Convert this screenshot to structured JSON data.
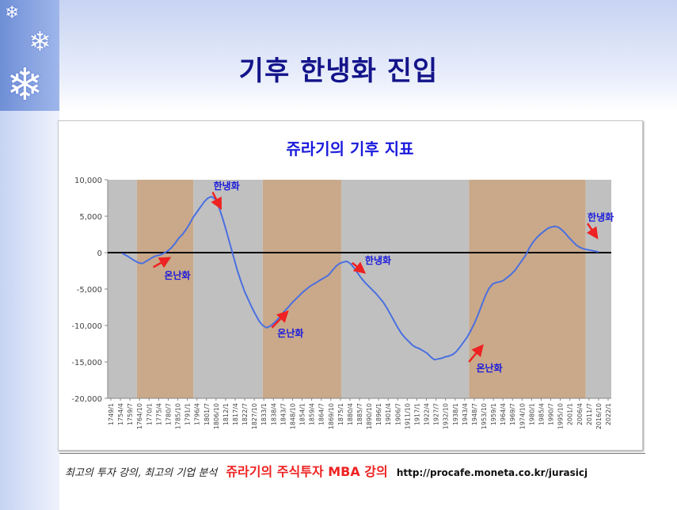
{
  "slide": {
    "title": "기후 한냉화 진입",
    "footer_italic": "최고의 투자 강의, 최고의 기업 분석",
    "footer_brand": "쥬라기의 주식투자 MBA 강의",
    "footer_url": "http://procafe.moneta.co.kr/jurasicj"
  },
  "colors": {
    "title": "#14148a",
    "line": "#4a6fe0",
    "warm_band": "#c9a98a",
    "cool_band": "#c0c0c0",
    "annotation_text": "#1a1adc",
    "arrow": "#ee2222",
    "footer_brand": "#ee2222"
  },
  "chart_data": {
    "type": "line",
    "title": "쥬라기의 기후 지표",
    "ylim": [
      -20000,
      10000
    ],
    "y_ticks": [
      10000,
      5000,
      0,
      -5000,
      -10000,
      -15000,
      -20000
    ],
    "y_tick_labels": [
      "10,000",
      "5,000",
      "0",
      "-5,000",
      "-10,000",
      "-15,000",
      "-20,000"
    ],
    "x_range": [
      1749,
      2025
    ],
    "x_tick_labels": [
      "1749/1",
      "1754/4",
      "1759/7",
      "1764/10",
      "1770/1",
      "1775/4",
      "1780/7",
      "1785/10",
      "1791/1",
      "1796/4",
      "1801/7",
      "1806/10",
      "1812/1",
      "1817/4",
      "1822/7",
      "1827/10",
      "1833/1",
      "1838/4",
      "1843/7",
      "1848/10",
      "1854/1",
      "1859/4",
      "1864/7",
      "1869/10",
      "1875/1",
      "1880/4",
      "1885/7",
      "1890/10",
      "1896/1",
      "1901/4",
      "1906/7",
      "1911/10",
      "1917/1",
      "1922/4",
      "1927/7",
      "1932/10",
      "1938/1",
      "1943/4",
      "1948/7",
      "1953/10",
      "1959/1",
      "1964/4",
      "1969/7",
      "1974/10",
      "1980/1",
      "1985/4",
      "1990/7",
      "1995/10",
      "2001/1",
      "2006/4",
      "2011/7",
      "2016/10",
      "2022/1"
    ],
    "bands": [
      {
        "start": 1749,
        "end": 1765,
        "kind": "cool"
      },
      {
        "start": 1765,
        "end": 1796,
        "kind": "warm"
      },
      {
        "start": 1796,
        "end": 1834,
        "kind": "cool"
      },
      {
        "start": 1834,
        "end": 1877,
        "kind": "warm"
      },
      {
        "start": 1877,
        "end": 1947,
        "kind": "cool"
      },
      {
        "start": 1947,
        "end": 2011,
        "kind": "warm"
      },
      {
        "start": 2011,
        "end": 2025,
        "kind": "cool"
      }
    ],
    "series": [
      {
        "name": "기후 지표",
        "x": [
          1757,
          1760,
          1763,
          1766,
          1768,
          1770,
          1772,
          1774,
          1776,
          1778,
          1780,
          1782,
          1784,
          1786,
          1788,
          1790,
          1792,
          1794,
          1796,
          1798,
          1800,
          1802,
          1804,
          1806,
          1808,
          1810,
          1812,
          1814,
          1816,
          1818,
          1820,
          1822,
          1824,
          1826,
          1828,
          1830,
          1832,
          1834,
          1836,
          1838,
          1840,
          1842,
          1844,
          1846,
          1848,
          1850,
          1852,
          1854,
          1856,
          1858,
          1860,
          1862,
          1864,
          1866,
          1868,
          1870,
          1872,
          1874,
          1876,
          1878,
          1880,
          1882,
          1884,
          1886,
          1888,
          1890,
          1892,
          1894,
          1896,
          1898,
          1900,
          1902,
          1904,
          1906,
          1908,
          1910,
          1912,
          1914,
          1916,
          1918,
          1920,
          1922,
          1924,
          1926,
          1928,
          1930,
          1932,
          1934,
          1936,
          1938,
          1940,
          1942,
          1944,
          1946,
          1948,
          1950,
          1952,
          1954,
          1956,
          1958,
          1960,
          1962,
          1964,
          1966,
          1968,
          1970,
          1972,
          1974,
          1976,
          1978,
          1980,
          1982,
          1984,
          1986,
          1988,
          1990,
          1992,
          1994,
          1996,
          1998,
          2000,
          2002,
          2004,
          2006,
          2008,
          2010,
          2012,
          2014,
          2016,
          2018
        ],
        "y": [
          -100,
          -500,
          -1000,
          -1400,
          -1500,
          -1200,
          -900,
          -600,
          -400,
          -300,
          -50,
          250,
          700,
          1300,
          2000,
          2500,
          3200,
          4000,
          4900,
          5600,
          6300,
          7000,
          7500,
          7700,
          7300,
          6200,
          4700,
          3000,
          1200,
          -600,
          -2400,
          -3900,
          -5300,
          -6400,
          -7500,
          -8500,
          -9400,
          -10000,
          -10300,
          -10100,
          -9700,
          -9200,
          -8600,
          -8000,
          -7500,
          -6900,
          -6400,
          -5900,
          -5400,
          -5000,
          -4600,
          -4300,
          -4000,
          -3700,
          -3400,
          -3100,
          -2500,
          -1900,
          -1500,
          -1300,
          -1200,
          -1500,
          -2100,
          -2800,
          -3500,
          -4100,
          -4600,
          -5100,
          -5600,
          -6200,
          -6800,
          -7600,
          -8500,
          -9400,
          -10300,
          -11100,
          -11700,
          -12200,
          -12700,
          -13000,
          -13200,
          -13500,
          -13800,
          -14300,
          -14700,
          -14600,
          -14500,
          -14300,
          -14200,
          -14000,
          -13600,
          -13000,
          -12300,
          -11600,
          -10700,
          -9700,
          -8500,
          -7200,
          -5900,
          -4900,
          -4300,
          -4100,
          -4000,
          -3800,
          -3400,
          -3000,
          -2500,
          -1800,
          -1100,
          -400,
          600,
          1400,
          2000,
          2500,
          2900,
          3300,
          3500,
          3600,
          3500,
          3100,
          2600,
          2000,
          1500,
          1000,
          700,
          500,
          400,
          300,
          200,
          100
        ],
        "color": "#4a6fe0"
      }
    ],
    "annotations": [
      {
        "label": "한냉화",
        "x": 1807,
        "y": 8700,
        "arrow_from": [
          1806.5,
          8300
        ],
        "arrow_to": [
          1810,
          6600
        ]
      },
      {
        "label": "온난화",
        "x": 1780,
        "y": -3600,
        "arrow_from": [
          1774,
          -2000
        ],
        "arrow_to": [
          1781,
          -1000
        ]
      },
      {
        "label": "온난화",
        "x": 1842,
        "y": -11500,
        "arrow_from": [
          1839,
          -10300
        ],
        "arrow_to": [
          1846,
          -8500
        ]
      },
      {
        "label": "한냉화",
        "x": 1890,
        "y": -1500,
        "arrow_from": [
          1883,
          -1400
        ],
        "arrow_to": [
          1888,
          -2400
        ]
      },
      {
        "label": "온난화",
        "x": 1951,
        "y": -16300,
        "arrow_from": [
          1947,
          -15000
        ],
        "arrow_to": [
          1953,
          -13200
        ]
      },
      {
        "label": "한냉화",
        "x": 2012,
        "y": 4400,
        "arrow_from": [
          2012,
          4000
        ],
        "arrow_to": [
          2016,
          2500
        ]
      }
    ]
  }
}
